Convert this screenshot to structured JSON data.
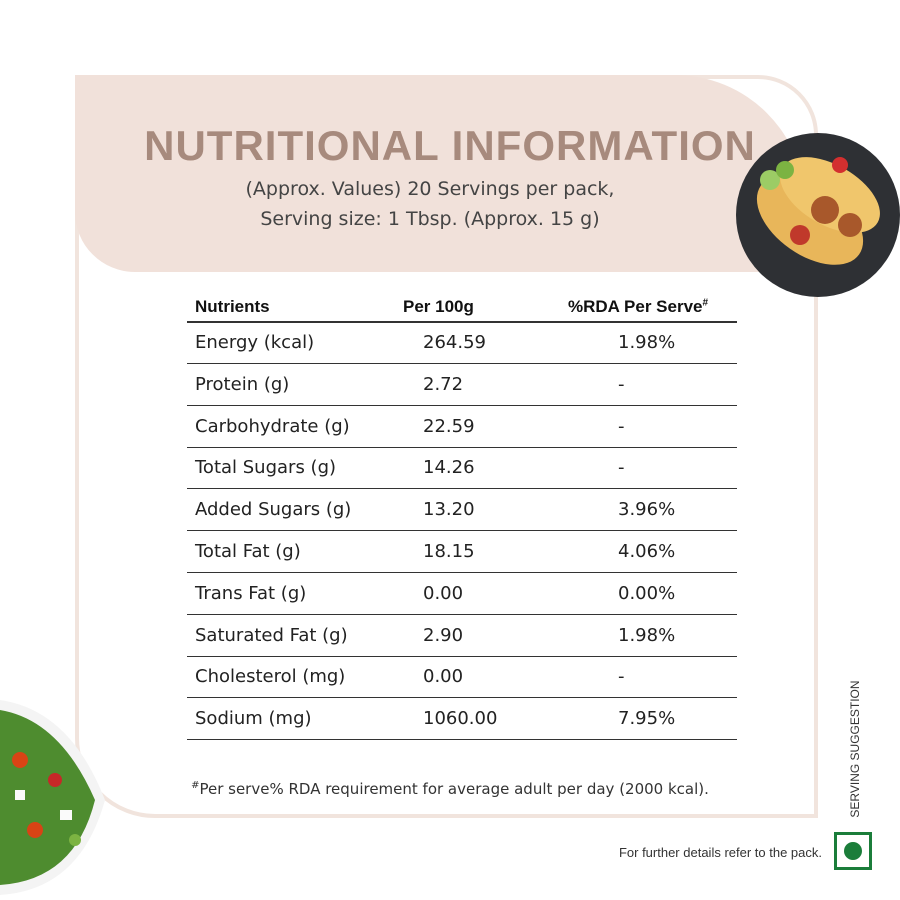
{
  "header": {
    "title": "NUTRITIONAL INFORMATION",
    "subtitle_lines": [
      "(Approx. Values) 20 Servings per pack,",
      "Serving size: 1 Tbsp. (Approx. 15 g)"
    ]
  },
  "table": {
    "columns": [
      "Nutrients",
      "Per 100g",
      "%RDA Per Serve"
    ],
    "column_mark": "#",
    "rows": [
      [
        "Energy (kcal)",
        "264.59",
        "1.98%"
      ],
      [
        "Protein (g)",
        "2.72",
        "-"
      ],
      [
        "Carbohydrate (g)",
        "22.59",
        "-"
      ],
      [
        "Total Sugars (g)",
        "14.26",
        "-"
      ],
      [
        "Added Sugars (g)",
        "13.20",
        "3.96%"
      ],
      [
        "Total Fat (g)",
        "18.15",
        "4.06%"
      ],
      [
        "Trans Fat (g)",
        "0.00",
        "0.00%"
      ],
      [
        "Saturated Fat (g)",
        "2.90",
        "1.98%"
      ],
      [
        "Cholesterol (mg)",
        "0.00",
        "-"
      ],
      [
        "Sodium (mg)",
        "1060.00",
        "7.95%"
      ]
    ]
  },
  "footnote": {
    "mark": "#",
    "text": "Per serve% RDA requirement for average adult per day (2000 kcal)."
  },
  "side_label": "SERVING SUGGESTION",
  "pack_note": "For further details refer to the pack."
}
